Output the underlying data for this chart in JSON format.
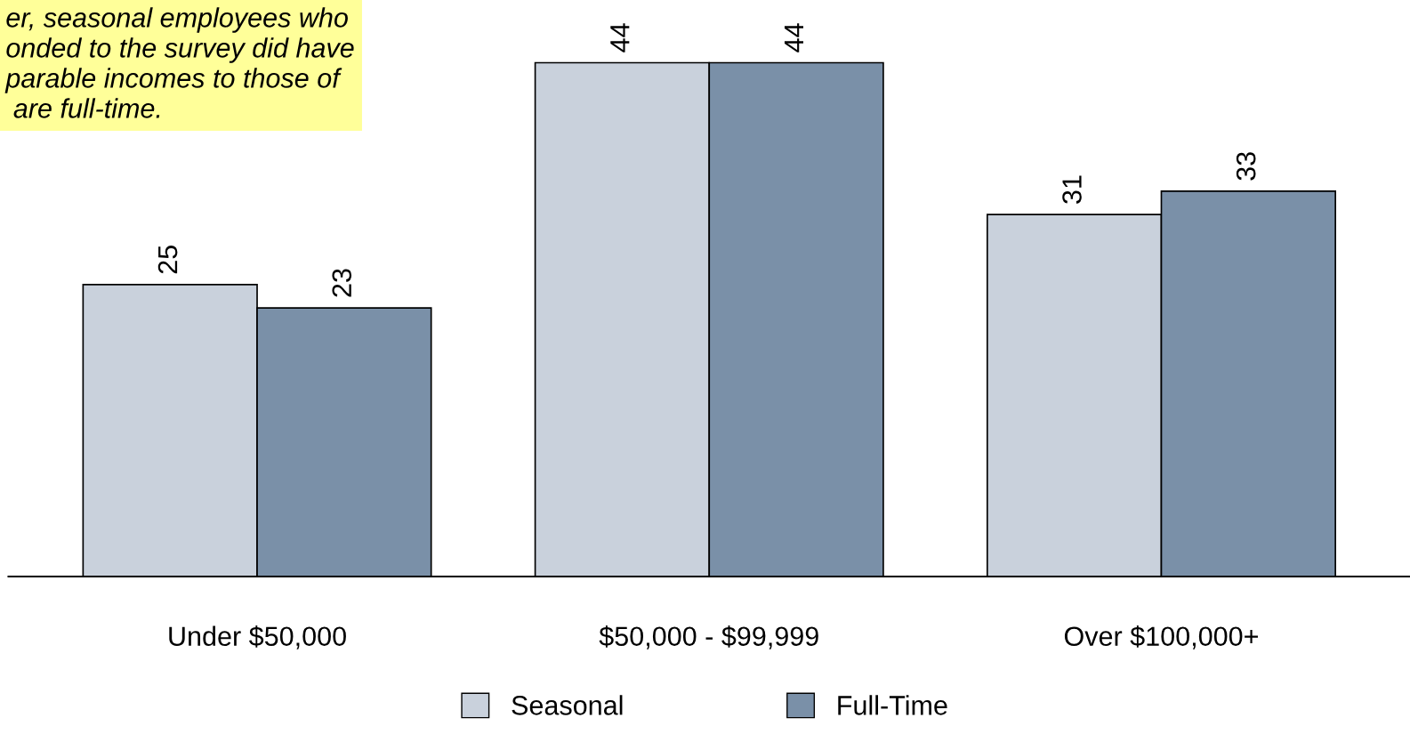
{
  "chart_data": {
    "type": "bar",
    "categories": [
      "Under $50,000",
      "$50,000 - $99,999",
      "Over $100,000+"
    ],
    "series": [
      {
        "name": "Seasonal",
        "color": "#c9d1dc",
        "values": [
          25,
          44,
          31
        ]
      },
      {
        "name": "Full-Time",
        "color": "#7a90a8",
        "values": [
          23,
          44,
          33
        ]
      }
    ],
    "tick_labels": "x",
    "data_labels": true,
    "legend": "bottom",
    "grid": false,
    "annotations": [
      "er, seasonal employees who\nonded to the survey did have\nparable incomes to those of\n are full-time."
    ]
  }
}
